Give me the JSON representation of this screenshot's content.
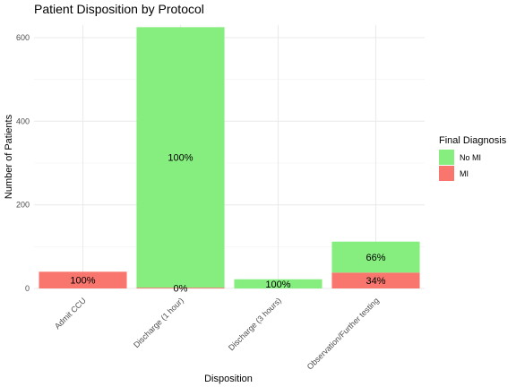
{
  "chart_data": {
    "type": "bar",
    "stacked": true,
    "title": "Patient Disposition by Protocol",
    "xlabel": "Disposition",
    "ylabel": "Number of Patients",
    "ylim": [
      0,
      630
    ],
    "yticks": [
      0,
      200,
      400,
      600
    ],
    "categories": [
      "Admit CCU",
      "Discharge (1 hour)",
      "Discharge (3 hours)",
      "Observation/Further testing"
    ],
    "series": [
      {
        "name": "MI",
        "color": "#F8766D",
        "values": [
          40,
          2,
          0,
          38
        ],
        "labels": [
          "100%",
          "0%",
          "",
          "34%"
        ]
      },
      {
        "name": "No MI",
        "color": "#86EE7E",
        "values": [
          0,
          623,
          22,
          74
        ],
        "labels": [
          "",
          "100%",
          "100%",
          "66%"
        ]
      }
    ],
    "legend": {
      "title": "Final Diagnosis",
      "position": "right",
      "items": [
        {
          "name": "No MI",
          "color": "#86EE7E"
        },
        {
          "name": "MI",
          "color": "#F8766D"
        }
      ]
    },
    "grid": true
  }
}
